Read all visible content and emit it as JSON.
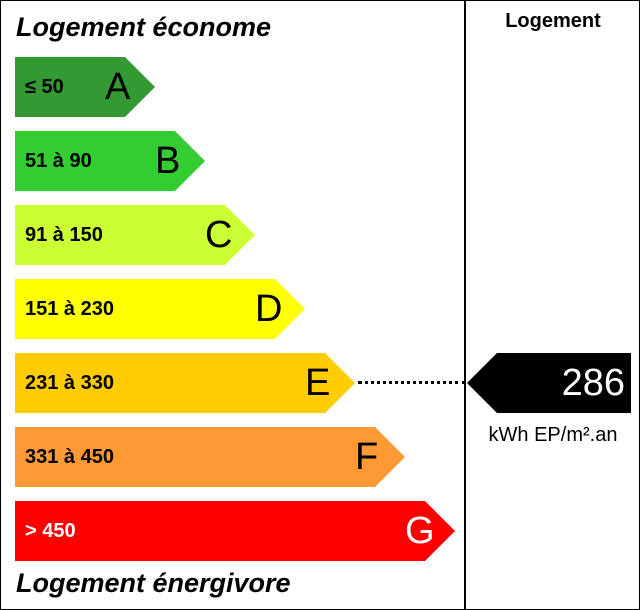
{
  "header_top": "Logement économe",
  "header_bottom": "Logement énergivore",
  "column_title": "Logement",
  "bands": [
    {
      "letter": "A",
      "range": "≤ 50",
      "color": "#339933"
    },
    {
      "letter": "B",
      "range": "51 à 90",
      "color": "#33cc33"
    },
    {
      "letter": "C",
      "range": "91 à 150",
      "color": "#ccff33"
    },
    {
      "letter": "D",
      "range": "151 à 230",
      "color": "#ffff00"
    },
    {
      "letter": "E",
      "range": "231 à 330",
      "color": "#ffcc00"
    },
    {
      "letter": "F",
      "range": "331 à 450",
      "color": "#ff9933"
    },
    {
      "letter": "G",
      "range": "> 450",
      "color": "#ff0000"
    }
  ],
  "indicator": {
    "value": "286",
    "unit": "kWh EP/m².an",
    "class": "E",
    "color": "#000000"
  }
}
